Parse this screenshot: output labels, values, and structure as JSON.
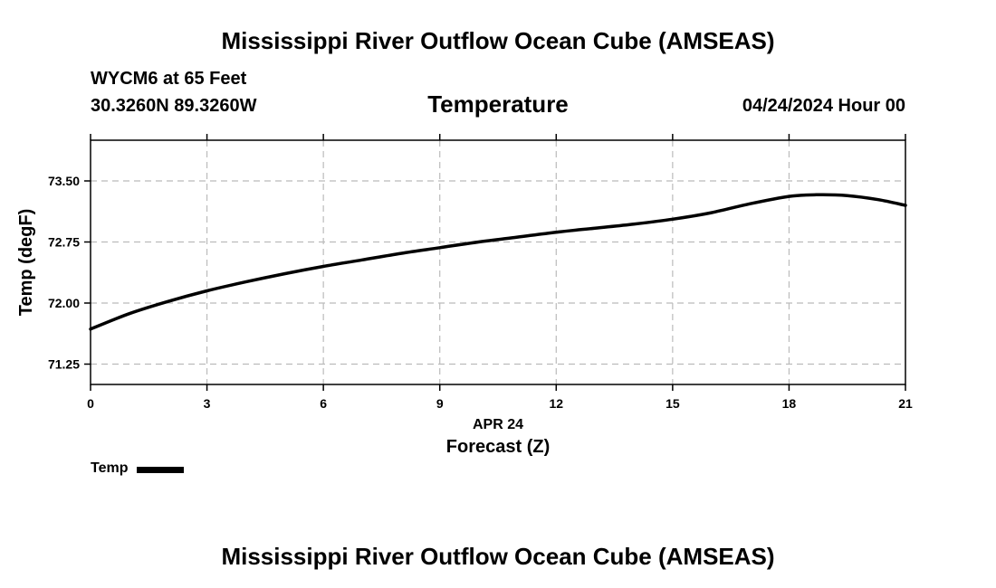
{
  "header": {
    "title": "Mississippi River Outflow Ocean Cube (AMSEAS)",
    "station": "WYCM6 at 65 Feet",
    "coords": "30.3260N  89.3260W",
    "subtitle": "Temperature",
    "datetime": "04/24/2024 Hour 00"
  },
  "footer": {
    "title": "Mississippi River Outflow Ocean Cube (AMSEAS)"
  },
  "legend": {
    "label": "Temp",
    "color": "#000000"
  },
  "chart_data": {
    "type": "line",
    "title": "Temperature",
    "xlabel": "Forecast (Z)",
    "xsublabel": "APR 24",
    "ylabel": "Temp (degF)",
    "xlim": [
      0,
      21
    ],
    "ylim": [
      71.0,
      74.0
    ],
    "xticks": [
      0,
      3,
      6,
      9,
      12,
      15,
      18,
      21
    ],
    "xtick_labels": [
      "0",
      "3",
      "6",
      "9",
      "12",
      "15",
      "18",
      "21"
    ],
    "yticks": [
      71.25,
      72.0,
      72.75,
      73.5
    ],
    "ytick_labels": [
      "71.25",
      "72.00",
      "72.75",
      "73.50"
    ],
    "grid": true,
    "series": [
      {
        "name": "Temp",
        "color": "#000000",
        "x": [
          0,
          1,
          2,
          3,
          4,
          5,
          6,
          7,
          8,
          9,
          10,
          11,
          12,
          13,
          14,
          15,
          16,
          17,
          18,
          18.7,
          19.5,
          20.3,
          21
        ],
        "y": [
          71.68,
          71.87,
          72.02,
          72.15,
          72.26,
          72.36,
          72.45,
          72.53,
          72.61,
          72.68,
          72.75,
          72.81,
          72.87,
          72.92,
          72.97,
          73.03,
          73.11,
          73.22,
          73.31,
          73.33,
          73.32,
          73.27,
          73.2
        ]
      }
    ]
  }
}
